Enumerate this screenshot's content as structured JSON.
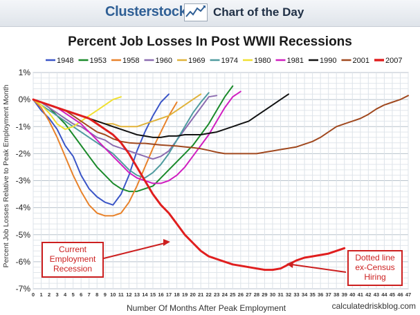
{
  "header": {
    "brand": "Clusterstock",
    "subtitle": "Chart of the Day"
  },
  "footer": {
    "credit": "calculatedriskblog.com"
  },
  "chart_data": {
    "type": "line",
    "title": "Percent Job Losses In Post WWII Recessions",
    "xlabel": "Number Of Months After Peak Employment",
    "ylabel": "Percent Job Losses Relative to Peak Employment Month",
    "xlim": [
      0,
      47
    ],
    "ylim": [
      -7,
      1
    ],
    "grid": true,
    "legend_position": "top",
    "x_ticks": [
      0,
      1,
      2,
      3,
      4,
      5,
      6,
      7,
      8,
      9,
      10,
      11,
      12,
      13,
      14,
      15,
      16,
      17,
      18,
      19,
      20,
      21,
      22,
      23,
      24,
      25,
      26,
      27,
      28,
      29,
      30,
      31,
      32,
      33,
      34,
      35,
      36,
      37,
      38,
      39,
      40,
      41,
      42,
      43,
      44,
      45,
      46,
      47
    ],
    "y_ticks": [
      1,
      0,
      -1,
      -2,
      -3,
      -4,
      -5,
      -6,
      -7
    ],
    "y_tick_labels": [
      "1%",
      "0%",
      "-1%",
      "-2%",
      "-3%",
      "-4%",
      "-5%",
      "-6%",
      "-7%"
    ],
    "series": [
      {
        "name": "1948",
        "color": "#3a55c7",
        "values": [
          0,
          -0.4,
          -0.7,
          -1.1,
          -1.7,
          -2.1,
          -2.8,
          -3.3,
          -3.6,
          -3.8,
          -3.9,
          -3.5,
          -2.8,
          -1.9,
          -1.2,
          -0.6,
          -0.1,
          0.2
        ]
      },
      {
        "name": "1953",
        "color": "#1a8a2a",
        "values": [
          0,
          -0.1,
          -0.3,
          -0.6,
          -0.9,
          -1.3,
          -1.7,
          -2.1,
          -2.5,
          -2.8,
          -3.1,
          -3.3,
          -3.4,
          -3.4,
          -3.3,
          -3.2,
          -2.9,
          -2.6,
          -2.3,
          -2.0,
          -1.7,
          -1.3,
          -0.9,
          -0.4,
          0.1,
          0.5
        ]
      },
      {
        "name": "1958",
        "color": "#e8822a",
        "values": [
          0,
          -0.3,
          -0.8,
          -1.4,
          -2.1,
          -2.8,
          -3.4,
          -3.9,
          -4.2,
          -4.3,
          -4.3,
          -4.2,
          -3.8,
          -3.2,
          -2.5,
          -1.8,
          -1.2,
          -0.6,
          -0.1
        ]
      },
      {
        "name": "1960",
        "color": "#8c6cb0",
        "values": [
          0,
          -0.1,
          -0.3,
          -0.5,
          -0.7,
          -0.9,
          -1.0,
          -1.2,
          -1.4,
          -1.5,
          -1.7,
          -1.8,
          -1.9,
          -2.0,
          -2.1,
          -2.2,
          -2.1,
          -1.9,
          -1.5,
          -1.1,
          -0.7,
          -0.3,
          0.1,
          0.15
        ]
      },
      {
        "name": "1969",
        "color": "#e0b33a",
        "values": [
          0,
          -0.1,
          -0.2,
          -0.3,
          -0.4,
          -0.5,
          -0.6,
          -0.7,
          -0.8,
          -0.9,
          -0.9,
          -1.0,
          -1.0,
          -1.0,
          -0.9,
          -0.8,
          -0.7,
          -0.6,
          -0.4,
          -0.2,
          0.0,
          0.2
        ]
      },
      {
        "name": "1974",
        "color": "#4f9b9f",
        "values": [
          0,
          -0.2,
          -0.4,
          -0.6,
          -0.8,
          -1.0,
          -1.2,
          -1.4,
          -1.6,
          -1.8,
          -2.0,
          -2.3,
          -2.6,
          -2.8,
          -2.9,
          -2.7,
          -2.4,
          -2.0,
          -1.5,
          -1.0,
          -0.5,
          -0.1,
          0.25
        ]
      },
      {
        "name": "1980",
        "color": "#f0e030",
        "values": [
          0,
          -0.2,
          -0.5,
          -0.9,
          -1.1,
          -1.0,
          -0.8,
          -0.6,
          -0.4,
          -0.2,
          0.0,
          0.1
        ]
      },
      {
        "name": "1981",
        "color": "#d01ec0",
        "values": [
          0,
          -0.1,
          -0.2,
          -0.3,
          -0.5,
          -0.7,
          -0.9,
          -1.2,
          -1.5,
          -1.8,
          -2.1,
          -2.4,
          -2.7,
          -2.9,
          -3.0,
          -3.1,
          -3.1,
          -3.0,
          -2.8,
          -2.5,
          -2.1,
          -1.7,
          -1.3,
          -0.8,
          -0.3,
          0.1,
          0.3
        ]
      },
      {
        "name": "1990",
        "color": "#111111",
        "values": [
          0,
          -0.1,
          -0.2,
          -0.3,
          -0.4,
          -0.5,
          -0.6,
          -0.7,
          -0.8,
          -0.9,
          -1.0,
          -1.1,
          -1.2,
          -1.3,
          -1.35,
          -1.4,
          -1.4,
          -1.35,
          -1.35,
          -1.3,
          -1.3,
          -1.3,
          -1.25,
          -1.2,
          -1.1,
          -1.0,
          -0.9,
          -0.8,
          -0.6,
          -0.4,
          -0.2,
          0.0,
          0.2
        ]
      },
      {
        "name": "2001",
        "color": "#a0481e",
        "values": [
          0,
          -0.1,
          -0.2,
          -0.3,
          -0.4,
          -0.6,
          -0.8,
          -1.0,
          -1.2,
          -1.3,
          -1.45,
          -1.55,
          -1.6,
          -1.62,
          -1.62,
          -1.65,
          -1.68,
          -1.7,
          -1.72,
          -1.75,
          -1.78,
          -1.82,
          -1.88,
          -1.95,
          -2.0,
          -2.0,
          -2.0,
          -2.0,
          -2.0,
          -1.95,
          -1.9,
          -1.85,
          -1.8,
          -1.75,
          -1.65,
          -1.55,
          -1.4,
          -1.2,
          -1.0,
          -0.9,
          -0.8,
          -0.7,
          -0.55,
          -0.35,
          -0.2,
          -0.1,
          0.0,
          0.15
        ]
      },
      {
        "name": "2007",
        "color": "#e01e1e",
        "values": [
          0,
          -0.1,
          -0.2,
          -0.3,
          -0.4,
          -0.5,
          -0.6,
          -0.7,
          -0.9,
          -1.1,
          -1.3,
          -1.6,
          -2.0,
          -2.5,
          -3.0,
          -3.5,
          -3.9,
          -4.2,
          -4.6,
          -5.0,
          -5.3,
          -5.6,
          -5.8,
          -5.9,
          -6.0,
          -6.1,
          -6.15,
          -6.2,
          -6.25,
          -6.3,
          -6.3,
          -6.25,
          -6.1,
          -5.95,
          -5.85,
          -5.8,
          -5.75,
          -5.7,
          -5.6,
          -5.5
        ]
      }
    ],
    "annotations": [
      {
        "name": "current-recession",
        "lines": [
          "Current",
          "Employment",
          "Recession"
        ]
      },
      {
        "name": "dotted-line",
        "lines": [
          "Dotted line",
          "ex-Census",
          "Hiring"
        ]
      }
    ]
  }
}
